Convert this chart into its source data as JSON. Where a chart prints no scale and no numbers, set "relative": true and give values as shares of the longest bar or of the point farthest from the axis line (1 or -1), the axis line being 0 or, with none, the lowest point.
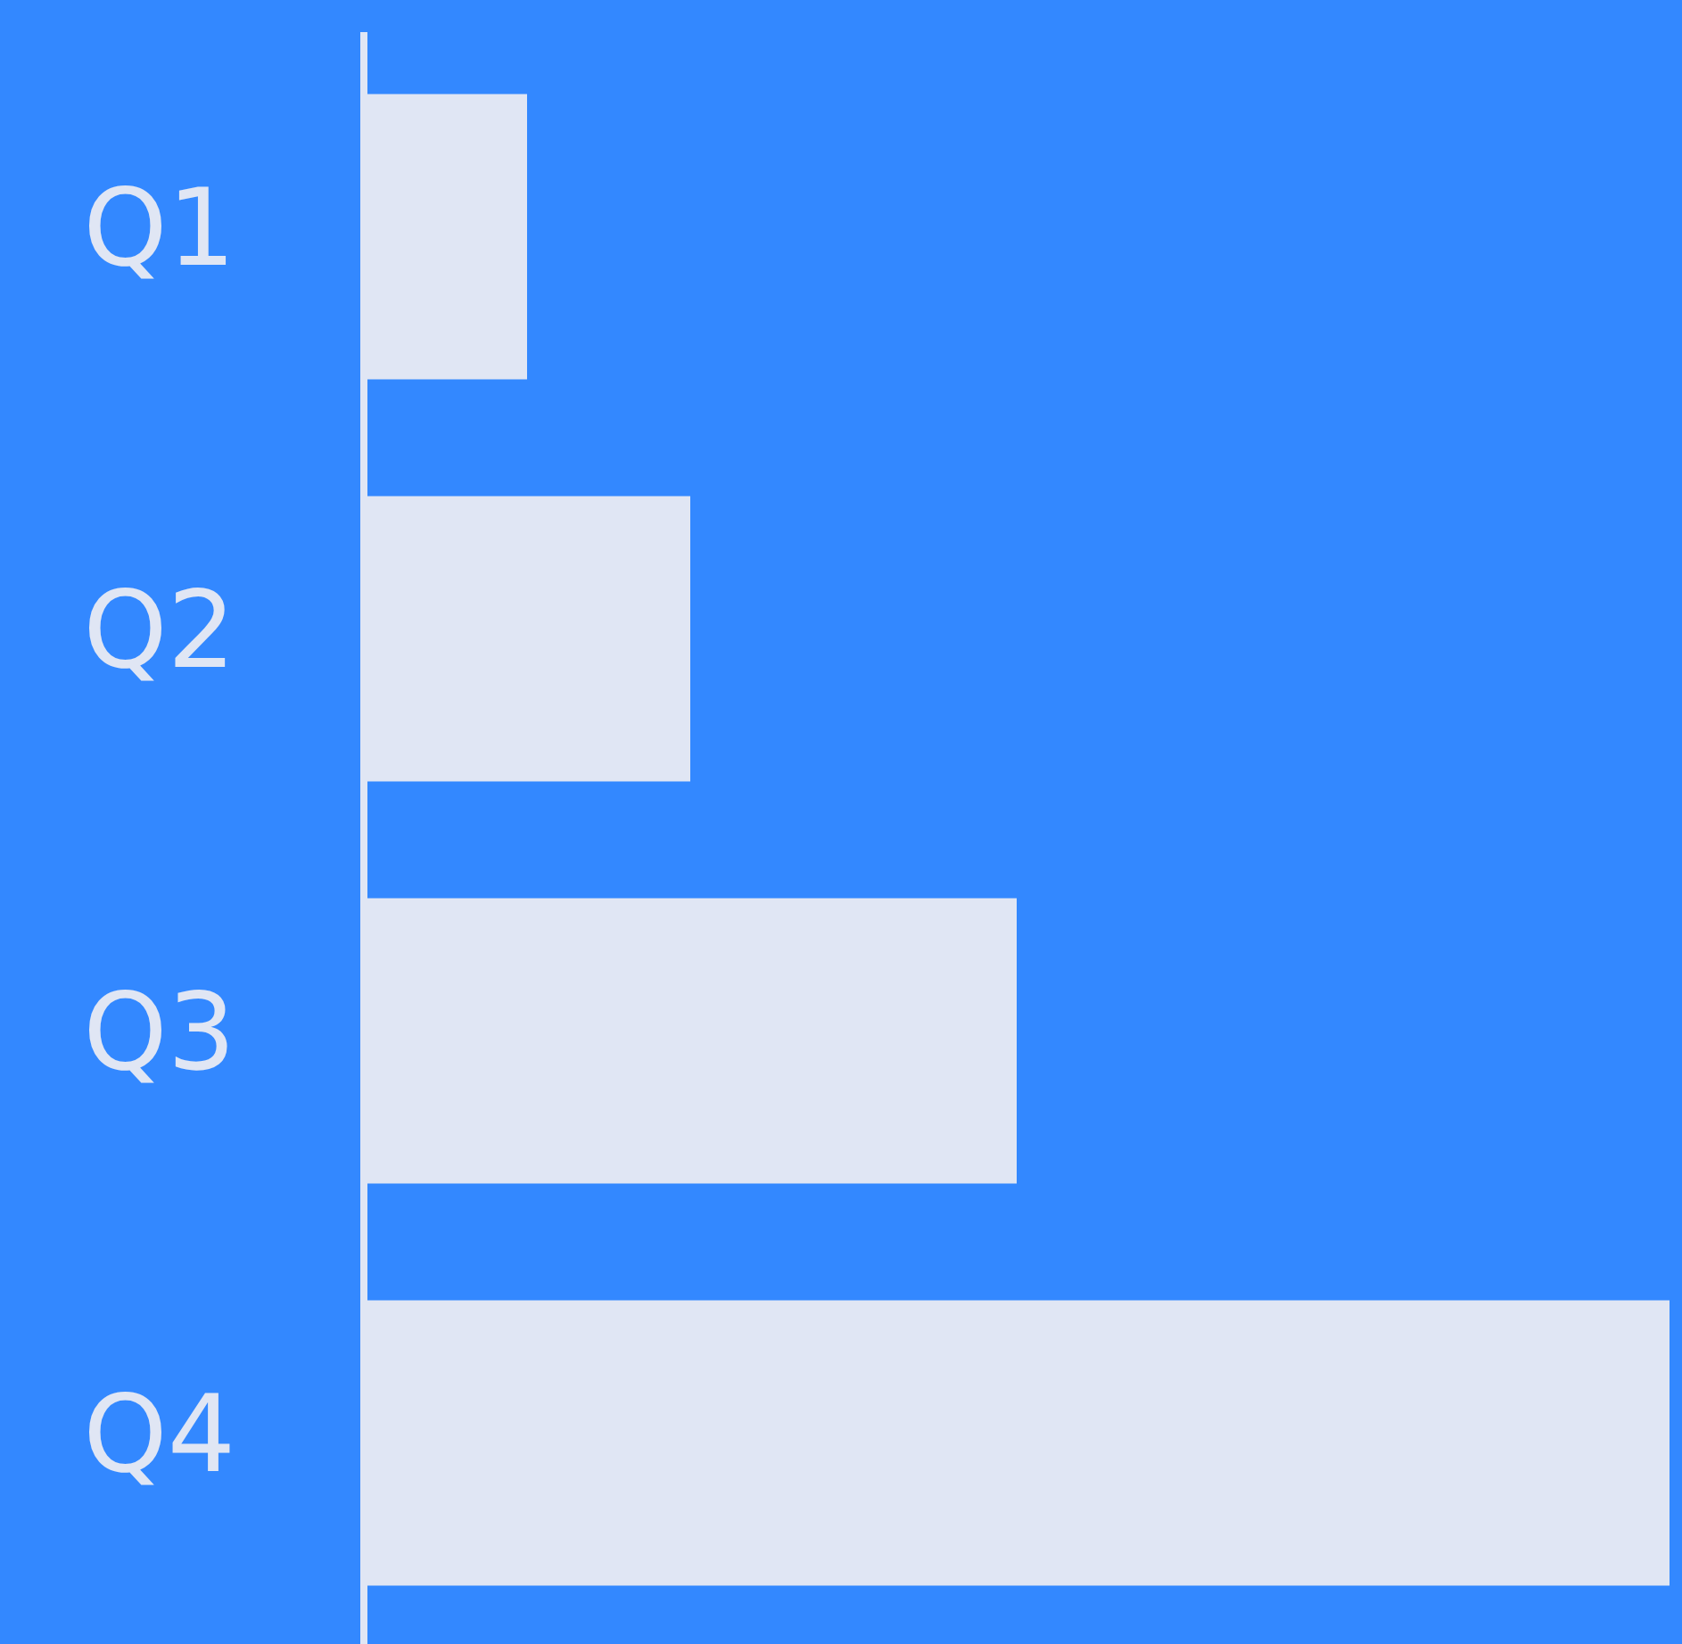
{
  "chart_data": {
    "type": "bar",
    "orientation": "horizontal",
    "relative": true,
    "categories": [
      "Q1",
      "Q2",
      "Q3",
      "Q4"
    ],
    "values": [
      0.125,
      0.25,
      0.5,
      1
    ],
    "color": "#e0e6f4",
    "legend": false
  }
}
